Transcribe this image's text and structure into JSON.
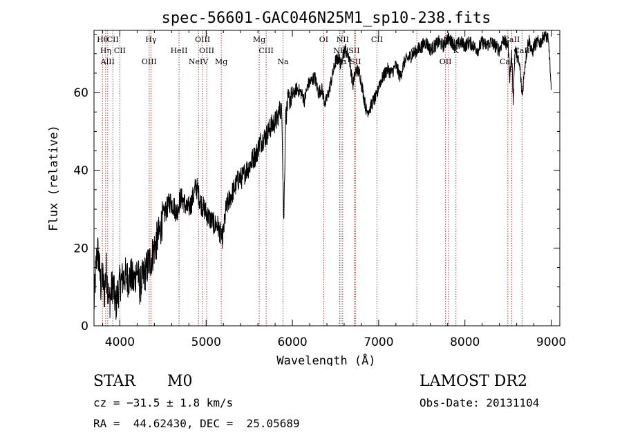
{
  "chart_data": {
    "type": "line",
    "title": "spec-56601-GAC046N25M1_sp10-238.fits",
    "xlabel": "Wavelength (Å)",
    "ylabel": "Flux (relative)",
    "xlim": [
      3700,
      9100
    ],
    "ylim": [
      0,
      76
    ],
    "xticks": [
      4000,
      5000,
      6000,
      7000,
      8000,
      9000
    ],
    "yticks": [
      0,
      20,
      40,
      60
    ],
    "grid": false,
    "line_color": "#000000",
    "marker_color": "#b03a3a",
    "series": [
      {
        "x": [
          3700,
          3720,
          3740,
          3760,
          3780,
          3800,
          3820,
          3840,
          3860,
          3880,
          3900,
          3920,
          3950,
          3980,
          4000,
          4030,
          4060,
          4100,
          4130,
          4160,
          4200,
          4230,
          4260,
          4300,
          4330,
          4360,
          4400,
          4430,
          4460,
          4500,
          4540,
          4580,
          4620,
          4660,
          4700,
          4740,
          4780,
          4820,
          4860,
          4880,
          4900,
          4920,
          4950,
          4980,
          5000,
          5030,
          5060,
          5100,
          5130,
          5160,
          5180,
          5200,
          5230,
          5260,
          5300,
          5340,
          5380,
          5420,
          5460,
          5500,
          5540,
          5580,
          5620,
          5660,
          5700,
          5740,
          5780,
          5820,
          5860,
          5880,
          5890,
          5900,
          5920,
          5950,
          6000,
          6050,
          6100,
          6140,
          6180,
          6220,
          6260,
          6300,
          6340,
          6380,
          6420,
          6460,
          6500,
          6540,
          6563,
          6580,
          6620,
          6660,
          6700,
          6740,
          6780,
          6820,
          6860,
          6900,
          6940,
          6980,
          7000,
          7050,
          7100,
          7150,
          7200,
          7250,
          7300,
          7350,
          7400,
          7450,
          7500,
          7550,
          7600,
          7650,
          7700,
          7750,
          7800,
          7850,
          7900,
          7950,
          8000,
          8050,
          8100,
          8150,
          8200,
          8250,
          8300,
          8350,
          8400,
          8450,
          8480,
          8500,
          8520,
          8542,
          8560,
          8580,
          8600,
          8640,
          8662,
          8700,
          8740,
          8780,
          8800,
          8840,
          8880,
          8920,
          8960,
          8980,
          9000
        ],
        "y": [
          5,
          14,
          20,
          16,
          10,
          13,
          8,
          15,
          10,
          6,
          9,
          11,
          5,
          9,
          11,
          12,
          13,
          12,
          13,
          11,
          15,
          10,
          12,
          14,
          16,
          17,
          20,
          22,
          24,
          28,
          30,
          32,
          31,
          29,
          33,
          32,
          30,
          31,
          34,
          36,
          35,
          33,
          31,
          30,
          29,
          28,
          27,
          26,
          26,
          24,
          22,
          24,
          30,
          32,
          34,
          36,
          38,
          38,
          40,
          41,
          43,
          44,
          47,
          48,
          49,
          51,
          52,
          53,
          56,
          54,
          40,
          26,
          53,
          58,
          59,
          61,
          60,
          58,
          62,
          63,
          64,
          60,
          61,
          57,
          60,
          64,
          68,
          69,
          67,
          70,
          71,
          69,
          62,
          66,
          65,
          60,
          55,
          56,
          58,
          59,
          62,
          64,
          66,
          65,
          67,
          64,
          68,
          69,
          70,
          71,
          72,
          73,
          71,
          72,
          73,
          72,
          74,
          73,
          72,
          73,
          72,
          73,
          72,
          71,
          73,
          72,
          73,
          72,
          71,
          74,
          72,
          73,
          64,
          70,
          58,
          71,
          70,
          66,
          59,
          68,
          74,
          70,
          72,
          73,
          73,
          75,
          74,
          70,
          60
        ]
      }
    ],
    "lines": [
      {
        "label": "Hθ",
        "wavelength": 3798
      },
      {
        "label": "Hη",
        "wavelength": 3835
      },
      {
        "label": "AlII",
        "wavelength": 3859
      },
      {
        "label": "CII",
        "wavelength": 3919
      },
      {
        "label": "CII",
        "wavelength": 4000
      },
      {
        "label": "OIII",
        "wavelength": 4340
      },
      {
        "label": "Hγ",
        "wavelength": 4361
      },
      {
        "label": "HeII",
        "wavelength": 4686
      },
      {
        "label": "NeIV",
        "wavelength": 4911
      },
      {
        "label": "OIII",
        "wavelength": 4959
      },
      {
        "label": "OIII",
        "wavelength": 5007
      },
      {
        "label": "Mg",
        "wavelength": 5175
      },
      {
        "label": "Mg",
        "wavelength": 5615
      },
      {
        "label": "CIII",
        "wavelength": 5696
      },
      {
        "label": "Na",
        "wavelength": 5891
      },
      {
        "label": "OI",
        "wavelength": 6363
      },
      {
        "label": "NII",
        "wavelength": 6548
      },
      {
        "label": "Hα",
        "wavelength": 6563
      },
      {
        "label": "NII",
        "wavelength": 6583
      },
      {
        "label": "SII",
        "wavelength": 6716
      },
      {
        "label": "SII",
        "wavelength": 6731
      },
      {
        "label": "CII",
        "wavelength": 6980
      },
      {
        "label": "OII",
        "wavelength": 7443
      },
      {
        "label": "OII",
        "wavelength": 7775
      },
      {
        "label": "OI",
        "wavelength": 7809
      },
      {
        "label": "K",
        "wavelength": 7896
      },
      {
        "label": "CaII",
        "wavelength": 8498
      },
      {
        "label": "CaII",
        "wavelength": 8542
      },
      {
        "label": "CaII",
        "wavelength": 8662
      }
    ]
  },
  "info": {
    "class": "STAR",
    "subclass": "M0",
    "survey": "LAMOST DR2",
    "cz": "cz = −31.5 ± 1.8 km/s",
    "obs_date": "Obs-Date: 20131104",
    "coords": "RA =  44.62430, DEC =  25.05689"
  }
}
